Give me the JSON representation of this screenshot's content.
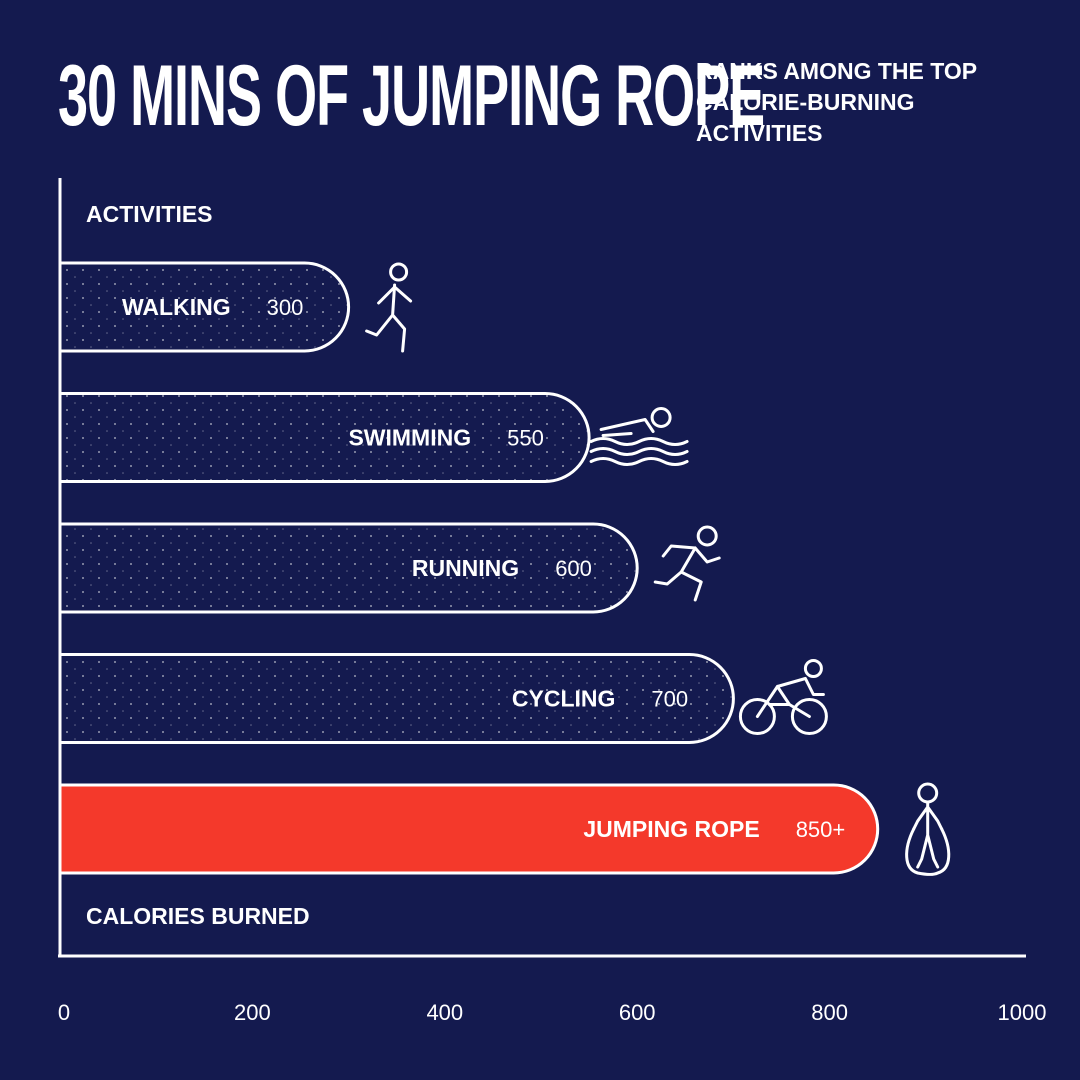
{
  "header": {
    "title": "30 MINS OF JUMPING ROPE",
    "subtitle": "RANKS AMONG THE TOP CALORIE-BURNING ACTIVITIES"
  },
  "colors": {
    "background": "#141a4f",
    "bar_outline": "#ffffff",
    "highlight": "#f4392b",
    "text": "#ffffff"
  },
  "chart_data": {
    "type": "bar",
    "orientation": "horizontal",
    "title": "30 MINS OF JUMPING ROPE",
    "subtitle": "RANKS AMONG THE TOP CALORIE-BURNING ACTIVITIES",
    "ylabel": "ACTIVITIES",
    "xlabel": "CALORIES BURNED",
    "categories": [
      "WALKING",
      "SWIMMING",
      "RUNNING",
      "CYCLING",
      "JUMPING ROPE"
    ],
    "values": [
      300,
      550,
      600,
      700,
      850
    ],
    "value_labels": [
      "300",
      "550",
      "600",
      "700",
      "850+"
    ],
    "icons": [
      "walking-icon",
      "swimming-icon",
      "running-icon",
      "cycling-icon",
      "jumping-rope-icon"
    ],
    "highlighted": "JUMPING ROPE",
    "xlim": [
      0,
      1000
    ],
    "xticks": [
      0,
      200,
      400,
      600,
      800,
      1000
    ],
    "grid": false
  }
}
